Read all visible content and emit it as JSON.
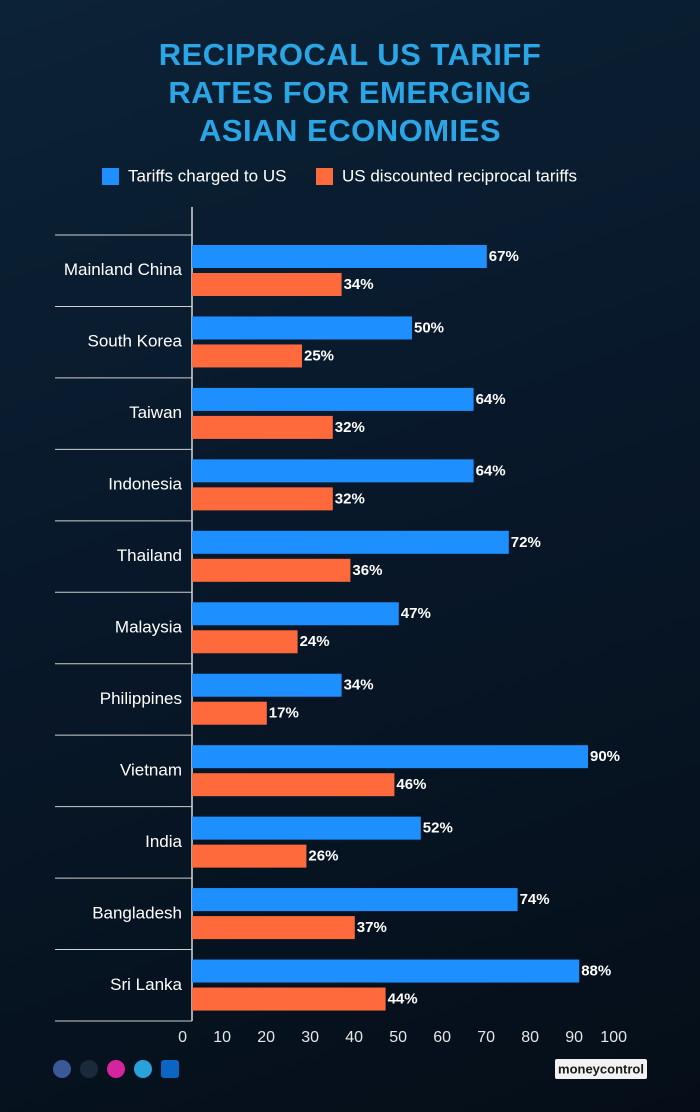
{
  "chart_data": {
    "type": "hbar",
    "title": "RECIPROCAL US TARIFF RATES FOR EMERGING ASIAN ECONOMIES",
    "categories": [
      "Mainland China",
      "South Korea",
      "Taiwan",
      "Indonesia",
      "Thailand",
      "Malaysia",
      "Philippines",
      "Vietnam",
      "India",
      "Bangladesh",
      "Sri Lanka"
    ],
    "series": [
      {
        "name": "Tariffs charged to US",
        "color": "#1e8fff",
        "values": [
          67,
          50,
          64,
          64,
          72,
          47,
          34,
          90,
          52,
          74,
          88
        ],
        "value_labels": [
          "67%",
          "50%",
          "64%",
          "64%",
          "72%",
          "47%",
          "34%",
          "90%",
          "52%",
          "74%",
          "88%"
        ]
      },
      {
        "name": "US discounted reciprocal tariffs",
        "color": "#ff6a3d",
        "values": [
          34,
          25,
          32,
          32,
          36,
          24,
          17,
          46,
          26,
          37,
          44
        ],
        "value_labels": [
          "34%",
          "25%",
          "32%",
          "32%",
          "36%",
          "24%",
          "17%",
          "46%",
          "26%",
          "37%",
          "44%"
        ]
      }
    ],
    "xlim": [
      0,
      100
    ],
    "xticks": [
      0,
      10,
      20,
      30,
      40,
      50,
      60,
      70,
      80,
      90,
      100
    ],
    "legend": "top",
    "grid": false
  },
  "footer": {
    "brand": "moneycontrol"
  }
}
